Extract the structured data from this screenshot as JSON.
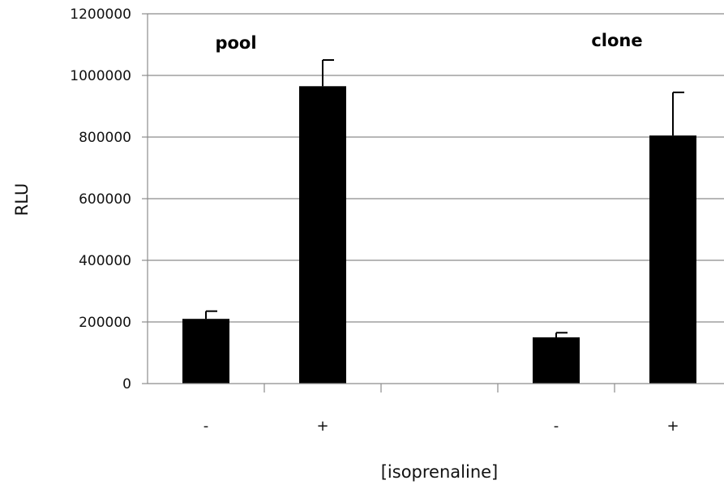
{
  "chart_data": {
    "type": "bar",
    "categories": [
      "-",
      "+",
      "",
      "-",
      "+"
    ],
    "values": [
      210000,
      965000,
      null,
      150000,
      805000
    ],
    "error_plus": [
      25000,
      85000,
      null,
      15000,
      140000
    ],
    "ylim": [
      0,
      1200000
    ],
    "yticks": [
      0,
      200000,
      400000,
      600000,
      800000,
      1000000,
      1200000
    ],
    "ytick_labels": [
      "0",
      "200000",
      "400000",
      "600000",
      "800000",
      "1000000",
      "1200000"
    ],
    "ylabel": "RLU",
    "xlabel": "[isoprenaline]",
    "group_labels": [
      "pool",
      "clone"
    ],
    "grid": "horizontal",
    "bar_color": "#000000",
    "grid_color": "#8c8c8c"
  }
}
